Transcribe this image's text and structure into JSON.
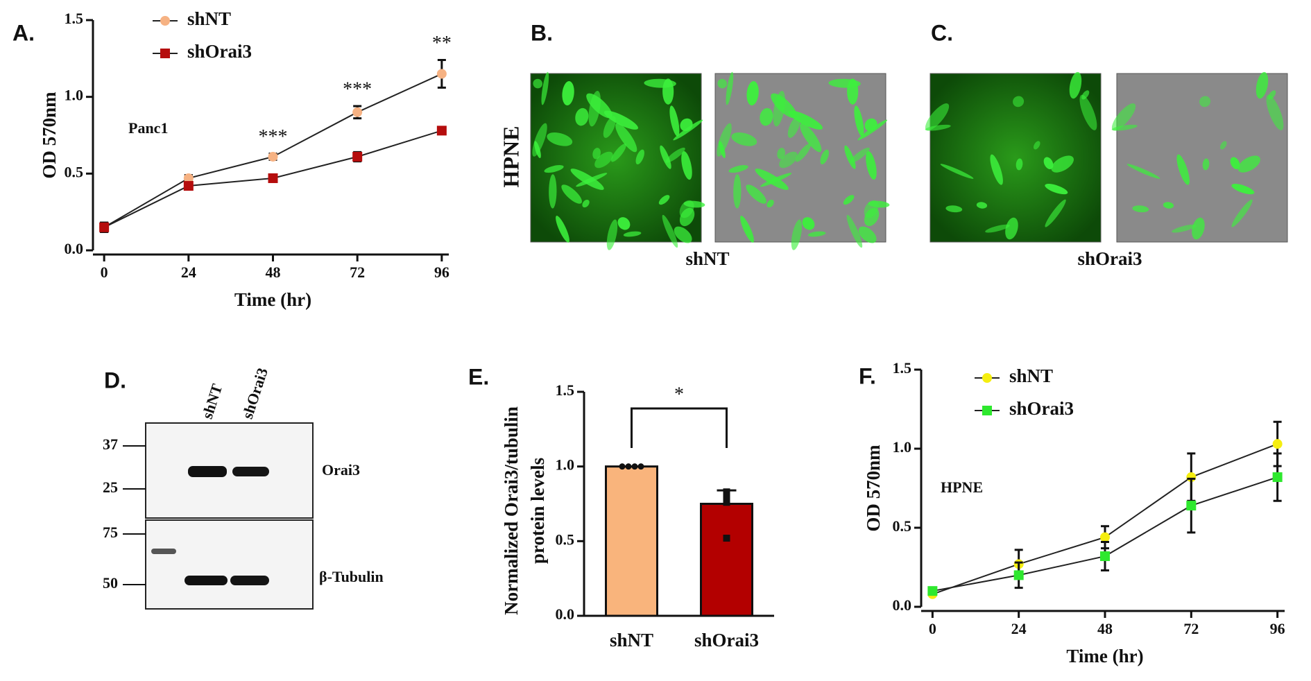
{
  "chart_data": [
    {
      "type": "line",
      "panel_label": "A.",
      "annotation": "Panc1",
      "xlabel": "Time (hr)",
      "ylabel": "OD 570nm",
      "x": [
        0,
        24,
        48,
        72,
        96
      ],
      "xlim": [
        -2,
        98
      ],
      "xticks": [
        0,
        24,
        48,
        72,
        96
      ],
      "ylim": [
        0,
        1.5
      ],
      "yticks": [
        {
          "value": 0,
          "label": "0.0"
        },
        0.5,
        {
          "value": 1,
          "label": "1.0"
        },
        1.5
      ],
      "legend": "upper left",
      "series": [
        {
          "name": "shNT",
          "color": "#f6b283",
          "marker": "circle",
          "values": [
            0.15,
            0.47,
            0.61,
            0.9,
            1.15
          ],
          "errors": [
            0.03,
            0.02,
            0.02,
            0.04,
            0.09
          ]
        },
        {
          "name": "shOrai3",
          "color": "#b50d0d",
          "marker": "square",
          "values": [
            0.15,
            0.42,
            0.47,
            0.61,
            0.78
          ],
          "errors": [
            0.03,
            0.02,
            0.01,
            0.03,
            0.01
          ]
        }
      ],
      "significance": [
        null,
        null,
        "***",
        "***",
        "**"
      ]
    },
    {
      "type": "bar",
      "panel_label": "E.",
      "ylabel": [
        "Normalized Orai3/tubulin",
        "protein levels"
      ],
      "categories": [
        "shNT",
        "shOrai3"
      ],
      "values": [
        1.0,
        0.75
      ],
      "errors": [
        0,
        0.09
      ],
      "colors": [
        "#f9b47c",
        "#b30000"
      ],
      "points": [
        [
          1.0,
          1.0,
          1.0,
          1.0
        ],
        [
          0.83,
          0.8,
          0.76,
          0.52
        ]
      ],
      "ylim": [
        0,
        1.5
      ],
      "yticks": [
        {
          "value": 0,
          "label": "0.0"
        },
        0.5,
        {
          "value": 1,
          "label": "1.0"
        },
        1.5
      ],
      "significance": "*"
    },
    {
      "type": "line",
      "panel_label": "F.",
      "annotation": "HPNE",
      "xlabel": "Time (hr)",
      "ylabel": "OD 570nm",
      "x": [
        0,
        24,
        48,
        72,
        96
      ],
      "xlim": [
        -2,
        98
      ],
      "xticks": [
        0,
        24,
        48,
        72,
        96
      ],
      "ylim": [
        0,
        1.5
      ],
      "yticks": [
        {
          "value": 0,
          "label": "0.0"
        },
        0.5,
        {
          "value": 1,
          "label": "1.0"
        },
        1.5
      ],
      "legend": "upper left",
      "series": [
        {
          "name": "shNT",
          "color": "#f5ee10",
          "marker": "circle",
          "values": [
            0.08,
            0.27,
            0.44,
            0.82,
            1.03
          ],
          "errors": [
            0,
            0.09,
            0.07,
            0.15,
            0.14
          ]
        },
        {
          "name": "shOrai3",
          "color": "#2ee82e",
          "marker": "square",
          "values": [
            0.1,
            0.2,
            0.32,
            0.64,
            0.82
          ],
          "errors": [
            0,
            0.08,
            0.09,
            0.17,
            0.15
          ]
        }
      ]
    }
  ],
  "images": [
    {
      "panel_label": "B.",
      "row_label": "HPNE",
      "caption": "shNT"
    },
    {
      "panel_label": "C.",
      "caption": "shOrai3"
    }
  ],
  "blot": {
    "panel_label": "D.",
    "lanes": [
      "shNT",
      "shOrai3"
    ],
    "markers": [
      37,
      25,
      75,
      50
    ],
    "bands": [
      "Orai3",
      "β-Tubulin"
    ]
  }
}
